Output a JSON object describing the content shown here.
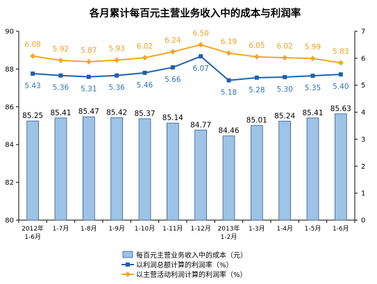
{
  "chart_data": {
    "type": "bar",
    "title": "各月累计每百元主营业务收入中的成本与利润率",
    "categories": [
      [
        "2012年",
        "1-6月"
      ],
      [
        "1-7月"
      ],
      [
        "1-8月"
      ],
      [
        "1-9月"
      ],
      [
        "1-10月"
      ],
      [
        "1-11月"
      ],
      [
        "1-12月"
      ],
      [
        "2013年",
        "1-2月"
      ],
      [
        "1-3月"
      ],
      [
        "1-4月"
      ],
      [
        "1-5月"
      ],
      [
        "1-6月"
      ]
    ],
    "y_left": {
      "min": 80,
      "max": 90,
      "ticks": [
        80,
        82,
        84,
        86,
        88,
        90
      ]
    },
    "y_right": {
      "min": 0,
      "max": 7,
      "ticks": [
        0,
        1,
        2,
        3,
        4,
        5,
        6,
        7
      ]
    },
    "series": [
      {
        "name": "每百元主营业务收入中的成本（元）",
        "type": "bar",
        "axis": "left",
        "color": "#9dc3e6",
        "values": [
          85.25,
          85.41,
          85.47,
          85.42,
          85.37,
          85.14,
          84.77,
          84.46,
          85.01,
          85.24,
          85.41,
          85.63
        ],
        "labels": [
          "85.25",
          "85.41",
          "85.47",
          "85.42",
          "85.37",
          "85.14",
          "84.77",
          "84.46",
          "85.01",
          "85.24",
          "85.41",
          "85.63"
        ]
      },
      {
        "name": "以利润总额计算的利润率（%）",
        "type": "line",
        "axis": "right",
        "color": "#1f5fad",
        "label_color": "#2e75b6",
        "values": [
          5.43,
          5.36,
          5.31,
          5.36,
          5.46,
          5.66,
          6.07,
          5.18,
          5.28,
          5.3,
          5.35,
          5.4
        ],
        "labels": [
          "5.43",
          "5.36",
          "5.31",
          "5.36",
          "5.46",
          "5.66",
          "6.07",
          "5.18",
          "5.28",
          "5.30",
          "5.35",
          "5.40"
        ]
      },
      {
        "name": "以主营活动利润计算的利润率（%）",
        "type": "line",
        "axis": "right",
        "color": "#f5a623",
        "label_color": "#f0a020",
        "values": [
          6.08,
          5.92,
          5.87,
          5.93,
          6.02,
          6.24,
          6.5,
          6.19,
          6.05,
          6.02,
          5.99,
          5.83
        ],
        "labels": [
          "6.08",
          "5.92",
          "5.87",
          "5.93",
          "6.02",
          "6.24",
          "6.50",
          "6.19",
          "6.05",
          "6.02",
          "5.99",
          "5.83"
        ]
      }
    ],
    "legend_position": "bottom",
    "grid": false
  }
}
